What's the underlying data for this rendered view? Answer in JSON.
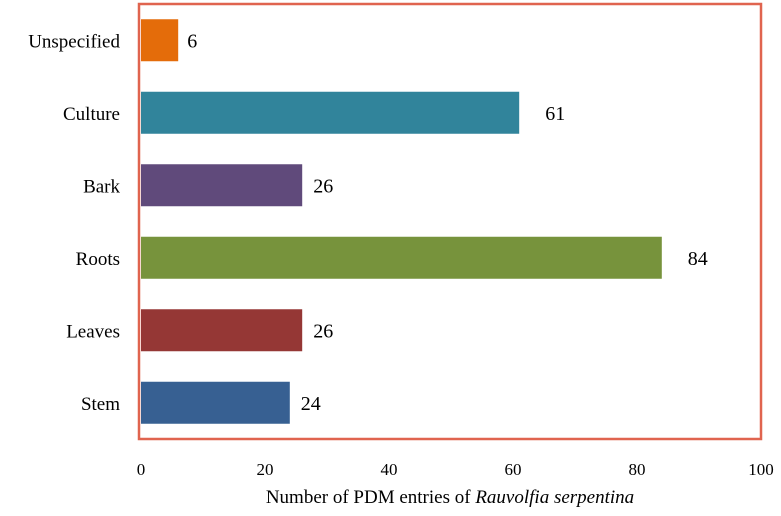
{
  "chart_data": {
    "type": "bar",
    "orientation": "horizontal",
    "categories": [
      "Unspecified",
      "Culture",
      "Bark",
      "Roots",
      "Leaves",
      "Stem"
    ],
    "values": [
      6,
      61,
      26,
      84,
      26,
      24
    ],
    "colors": [
      "#e46c0a",
      "#31849b",
      "#604a7b",
      "#77933c",
      "#953735",
      "#376092"
    ],
    "frame_color": "#e0644f",
    "xlabel_prefix": "Number of PDM entries of ",
    "xlabel_italic": "Rauvolfia serpentina",
    "xlim": [
      0,
      100
    ],
    "xticks": [
      0,
      20,
      40,
      60,
      80,
      100
    ],
    "grid": false,
    "legend": "none"
  }
}
